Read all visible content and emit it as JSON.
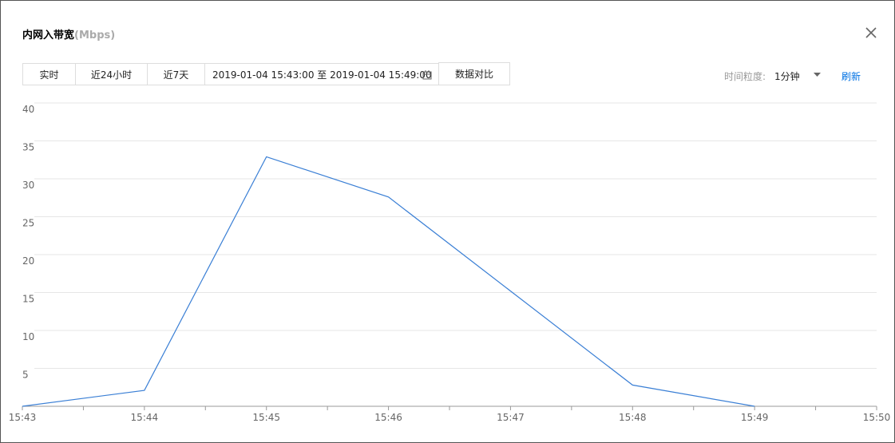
{
  "dialog": {
    "title": "内网入带宽",
    "unit": "(Mbps)"
  },
  "toolbar": {
    "tabs": [
      "实时",
      "近24小时",
      "近7天"
    ],
    "date_start": "2019-01-04 15:43:00",
    "date_sep": "至",
    "date_end": "2019-01-04 15:49:00",
    "compare": "数据对比",
    "granularity_label": "时间粒度:",
    "granularity": "1分钟",
    "refresh": "刷新"
  },
  "chart_data": {
    "type": "line",
    "categories": [
      "15:43",
      "15:44",
      "15:45",
      "15:46",
      "15:47",
      "15:48",
      "15:49",
      "15:50"
    ],
    "series": [
      {
        "name": "内网入带宽",
        "color": "#3a7fd5",
        "values": [
          0,
          2.1,
          32.9,
          27.6,
          15.2,
          2.8,
          0,
          null
        ]
      }
    ],
    "ylim": [
      0,
      40
    ],
    "yticks": [
      5,
      10,
      15,
      20,
      25,
      30,
      35,
      40
    ],
    "grid": true
  }
}
